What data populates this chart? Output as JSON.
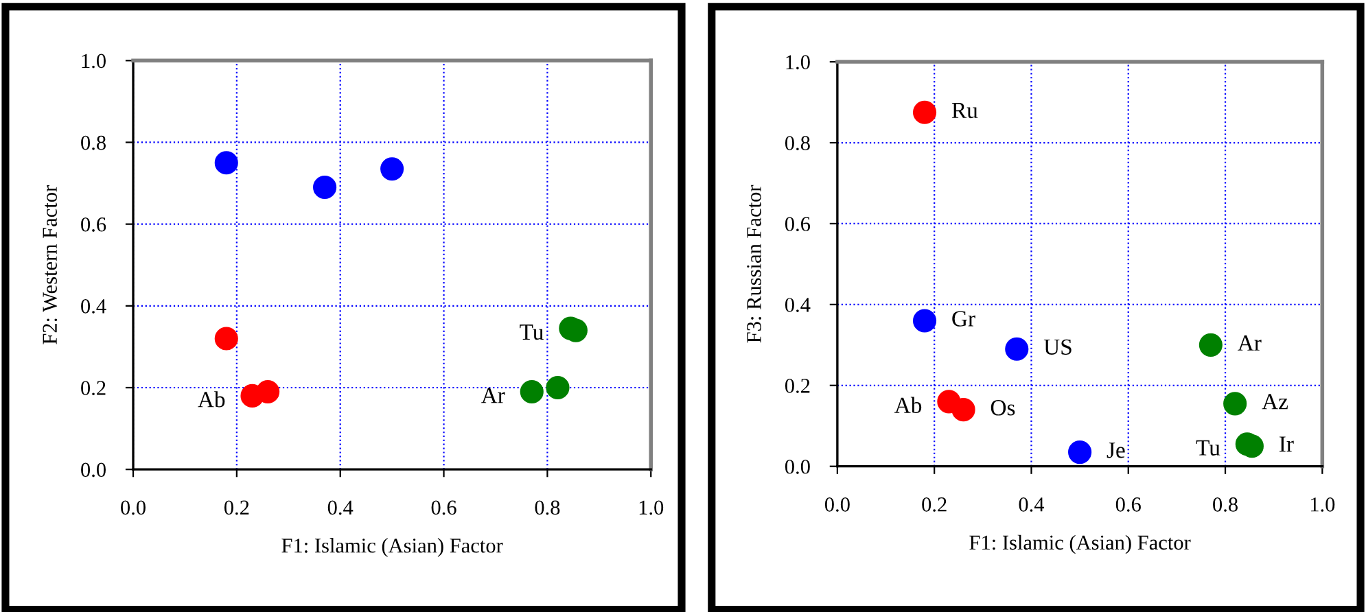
{
  "chart_data": [
    {
      "type": "scatter",
      "xlabel": "F1: Islamic (Asian) Factor",
      "ylabel": "F2: Western Factor",
      "xlim": [
        0,
        1
      ],
      "ylim": [
        0,
        1
      ],
      "xticks": [
        {
          "value": 0,
          "label": "0.0"
        },
        {
          "value": 0.2,
          "label": "0.2"
        },
        {
          "value": 0.4,
          "label": "0.4"
        },
        {
          "value": 0.6,
          "label": "0.6"
        },
        {
          "value": 0.8,
          "label": "0.8"
        },
        {
          "value": 1,
          "label": "1.0"
        }
      ],
      "yticks": [
        {
          "value": 0,
          "label": "0.0"
        },
        {
          "value": 0.2,
          "label": "0.2"
        },
        {
          "value": 0.4,
          "label": "0.4"
        },
        {
          "value": 0.6,
          "label": "0.6"
        },
        {
          "value": 0.8,
          "label": "0.8"
        },
        {
          "value": 1,
          "label": "1.0"
        }
      ],
      "grid": true,
      "marker": "circle",
      "legend": false,
      "series": [
        {
          "color": "#ff0000",
          "x": [
            0.18
          ],
          "values": [
            0.32
          ]
        },
        {
          "color": "#ff0000",
          "x": [
            0.23,
            0.26
          ],
          "values": [
            0.18,
            0.19
          ]
        },
        {
          "color": "#0000ff",
          "x": [
            0.18,
            0.37,
            0.5
          ],
          "values": [
            0.75,
            0.69,
            0.735
          ]
        },
        {
          "color": "#008000",
          "x": [
            0.77,
            0.82,
            0.845
          ],
          "values": [
            0.19,
            0.2,
            0.345
          ]
        },
        {
          "color": "#008000",
          "x": [
            0.855
          ],
          "values": [
            0.34
          ]
        }
      ],
      "annotations": [
        {
          "text": "Ab",
          "x": 0.23,
          "y": 0.18
        },
        {
          "text": "Ar",
          "x": 0.77,
          "y": 0.19
        },
        {
          "text": "Tu",
          "x": 0.845,
          "y": 0.345
        }
      ]
    },
    {
      "type": "scatter",
      "xlabel": "F1: Islamic (Asian) Factor",
      "ylabel": "F3: Russian Factor",
      "xlim": [
        0,
        1
      ],
      "ylim": [
        0,
        1
      ],
      "xticks": [
        {
          "value": 0,
          "label": "0.0"
        },
        {
          "value": 0.2,
          "label": "0.2"
        },
        {
          "value": 0.4,
          "label": "0.4"
        },
        {
          "value": 0.6,
          "label": "0.6"
        },
        {
          "value": 0.8,
          "label": "0.8"
        },
        {
          "value": 1,
          "label": "1.0"
        }
      ],
      "yticks": [
        {
          "value": 0,
          "label": "0.0"
        },
        {
          "value": 0.2,
          "label": "0.2"
        },
        {
          "value": 0.4,
          "label": "0.4"
        },
        {
          "value": 0.6,
          "label": "0.6"
        },
        {
          "value": 0.8,
          "label": "0.8"
        },
        {
          "value": 1,
          "label": "1.0"
        }
      ],
      "grid": true,
      "marker": "circle",
      "legend": false,
      "series": [
        {
          "color": "#ff0000",
          "x": [
            0.18
          ],
          "values": [
            0.875
          ]
        },
        {
          "color": "#ff0000",
          "x": [
            0.23,
            0.26
          ],
          "values": [
            0.16,
            0.14
          ]
        },
        {
          "color": "#0000ff",
          "x": [
            0.18,
            0.37,
            0.5
          ],
          "values": [
            0.36,
            0.29,
            0.035
          ]
        },
        {
          "color": "#008000",
          "x": [
            0.77,
            0.82,
            0.845
          ],
          "values": [
            0.3,
            0.155,
            0.055
          ]
        },
        {
          "color": "#008000",
          "x": [
            0.855
          ],
          "values": [
            0.05
          ]
        }
      ],
      "annotations": [
        {
          "text": "Ru",
          "x": 0.18,
          "y": 0.875
        },
        {
          "text": "Gr",
          "x": 0.18,
          "y": 0.36
        },
        {
          "text": "US",
          "x": 0.37,
          "y": 0.29
        },
        {
          "text": "Je",
          "x": 0.5,
          "y": 0.035
        },
        {
          "text": "Ab",
          "x": 0.23,
          "y": 0.16
        },
        {
          "text": "Os",
          "x": 0.26,
          "y": 0.14
        },
        {
          "text": "Ar",
          "x": 0.77,
          "y": 0.3
        },
        {
          "text": "Az",
          "x": 0.82,
          "y": 0.155
        },
        {
          "text": "Tu",
          "x": 0.845,
          "y": 0.055
        },
        {
          "text": "Ir",
          "x": 0.855,
          "y": 0.05
        }
      ]
    }
  ]
}
